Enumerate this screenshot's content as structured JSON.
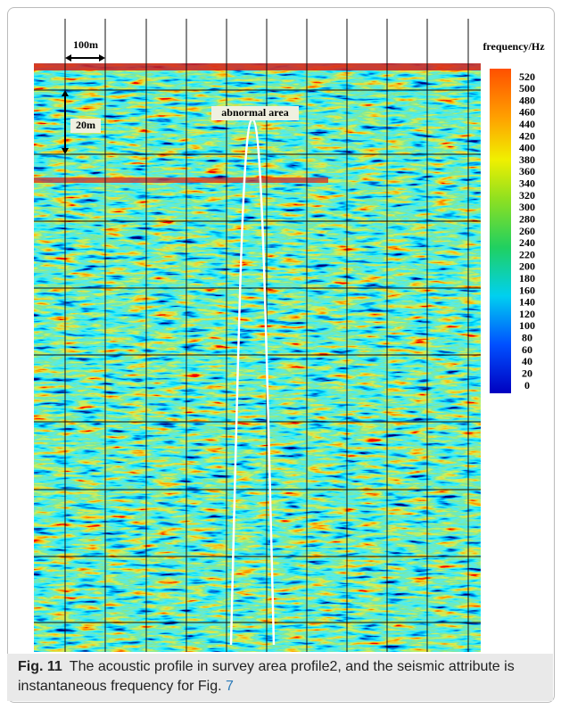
{
  "figure": {
    "scale_horizontal": "100m",
    "scale_vertical": "20m",
    "annotation": "abnormal area",
    "colorbar": {
      "title": "frequency/Hz",
      "ticks": [
        520,
        500,
        480,
        460,
        440,
        420,
        400,
        380,
        360,
        340,
        320,
        300,
        280,
        260,
        240,
        220,
        200,
        180,
        160,
        140,
        120,
        100,
        80,
        60,
        40,
        20,
        0
      ]
    }
  },
  "caption": {
    "label": "Fig. 11",
    "text": "The acoustic profile in survey area profile2, and the seismic attribute is instantaneous frequency for Fig.",
    "link": "7"
  }
}
